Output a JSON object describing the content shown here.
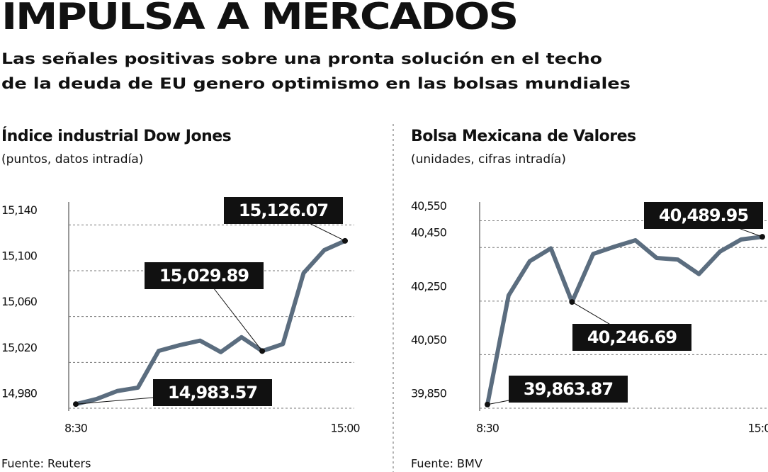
{
  "header": {
    "title": "IMPULSA A MERCADOS",
    "subtitle": [
      "Las señales positivas sobre una pronta solución en el techo",
      "de la deuda de EU genero optimismo en las bolsas mundiales"
    ]
  },
  "chart_data": [
    {
      "type": "line",
      "title": "Índice industrial Dow Jones",
      "subtitle": "(puntos, datos intradía)",
      "categories": [
        "8:30",
        null,
        null,
        null,
        null,
        null,
        null,
        null,
        null,
        null,
        null,
        null,
        null,
        "15:00"
      ],
      "values": [
        14983.57,
        14988,
        14995,
        14998,
        15030,
        15035,
        15039,
        15029,
        15042,
        15029.89,
        15036,
        15098,
        15118,
        15126.07
      ],
      "value_labels": [
        "14,983.57",
        null,
        null,
        null,
        null,
        null,
        null,
        null,
        null,
        "15,029.89",
        null,
        null,
        null,
        "15,126.07"
      ],
      "color": "#5b6d7f",
      "ylim": [
        14980,
        15160
      ],
      "yticks": [
        {
          "value": 14980,
          "label": "14,980"
        },
        {
          "value": 15020,
          "label": "15,020"
        },
        {
          "value": 15060,
          "label": "15,060"
        },
        {
          "value": 15100,
          "label": "15,100"
        },
        {
          "value": 15140,
          "label": "15,140"
        }
      ],
      "grid": true,
      "source": "Fuente: Reuters"
    },
    {
      "type": "line",
      "title": "Bolsa Mexicana de Valores",
      "subtitle": "(unidades, cifras intradía)",
      "categories": [
        "8:30",
        null,
        null,
        null,
        null,
        null,
        null,
        null,
        null,
        null,
        null,
        null,
        null,
        "15:00"
      ],
      "values": [
        39863.87,
        40271,
        40399,
        40447,
        40246.69,
        40426,
        40453,
        40477,
        40411,
        40405,
        40351,
        40435,
        40480,
        40489.95
      ],
      "value_labels": [
        "39,863.87",
        null,
        null,
        null,
        "40,246.69",
        null,
        null,
        null,
        null,
        null,
        null,
        null,
        null,
        "40,489.95"
      ],
      "color": "#5b6d7f",
      "ylim": [
        39850,
        40620
      ],
      "yticks": [
        {
          "value": 39850,
          "label": "39,850"
        },
        {
          "value": 40050,
          "label": "40,050"
        },
        {
          "value": 40250,
          "label": "40,250"
        },
        {
          "value": 40450,
          "label": "40,450"
        },
        {
          "value": 40550,
          "label": "40,550"
        }
      ],
      "grid": true,
      "source": "Fuente: BMV"
    }
  ]
}
